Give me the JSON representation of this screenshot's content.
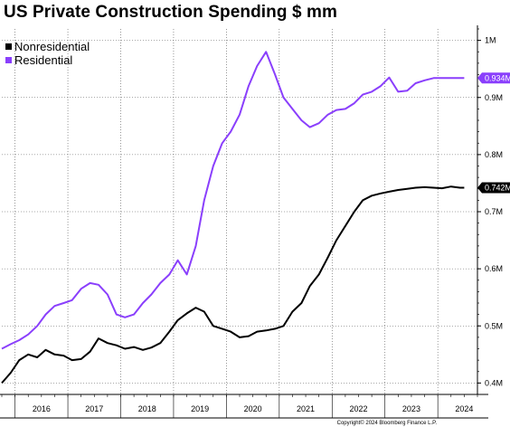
{
  "chart_data": {
    "type": "line",
    "title": "US Private Construction Spending $ mm",
    "legend_position": "top-left",
    "grid": true,
    "y_axis_position": "right",
    "ylim": [
      380000,
      1020000
    ],
    "y_ticks": [
      400000,
      500000,
      600000,
      700000,
      800000,
      900000,
      1000000
    ],
    "y_tick_labels": [
      "0.4M",
      "0.5M",
      "0.6M",
      "0.7M",
      "0.8M",
      "0.9M",
      "1M"
    ],
    "xlim": [
      2015.75,
      2024.75
    ],
    "x_tick_labels": [
      "2016",
      "2017",
      "2018",
      "2019",
      "2020",
      "2021",
      "2022",
      "2023",
      "2024"
    ],
    "series": [
      {
        "name": "Nonresidential",
        "color": "#000000",
        "last_value_label": "0.742M",
        "x": [
          2015.75,
          2015.92,
          2016.08,
          2016.25,
          2016.42,
          2016.58,
          2016.75,
          2016.92,
          2017.08,
          2017.25,
          2017.42,
          2017.58,
          2017.75,
          2017.92,
          2018.08,
          2018.25,
          2018.42,
          2018.58,
          2018.75,
          2018.92,
          2019.08,
          2019.25,
          2019.42,
          2019.58,
          2019.75,
          2019.92,
          2020.08,
          2020.25,
          2020.42,
          2020.58,
          2020.75,
          2020.92,
          2021.08,
          2021.25,
          2021.42,
          2021.58,
          2021.75,
          2021.92,
          2022.08,
          2022.25,
          2022.42,
          2022.58,
          2022.75,
          2022.92,
          2023.08,
          2023.25,
          2023.42,
          2023.58,
          2023.75,
          2023.92,
          2024.08,
          2024.25,
          2024.42,
          2024.5
        ],
        "values": [
          400000,
          418000,
          440000,
          450000,
          445000,
          458000,
          450000,
          448000,
          440000,
          442000,
          455000,
          478000,
          470000,
          466000,
          460000,
          463000,
          458000,
          462000,
          470000,
          490000,
          510000,
          522000,
          532000,
          525000,
          500000,
          495000,
          490000,
          480000,
          482000,
          490000,
          492000,
          495000,
          500000,
          525000,
          540000,
          570000,
          590000,
          620000,
          650000,
          675000,
          700000,
          720000,
          728000,
          732000,
          735000,
          738000,
          740000,
          742000,
          743000,
          742000,
          741000,
          744000,
          742000,
          742000
        ]
      },
      {
        "name": "Residential",
        "color": "#8a3ffc",
        "last_value_label": "0.934M",
        "x": [
          2015.75,
          2015.92,
          2016.08,
          2016.25,
          2016.42,
          2016.58,
          2016.75,
          2016.92,
          2017.08,
          2017.25,
          2017.42,
          2017.58,
          2017.75,
          2017.92,
          2018.08,
          2018.25,
          2018.42,
          2018.58,
          2018.75,
          2018.92,
          2019.08,
          2019.25,
          2019.42,
          2019.58,
          2019.75,
          2019.92,
          2020.08,
          2020.25,
          2020.42,
          2020.58,
          2020.75,
          2020.92,
          2021.08,
          2021.25,
          2021.42,
          2021.58,
          2021.75,
          2021.92,
          2022.08,
          2022.25,
          2022.42,
          2022.58,
          2022.75,
          2022.92,
          2023.08,
          2023.25,
          2023.42,
          2023.58,
          2023.75,
          2023.92,
          2024.08,
          2024.17,
          2024.25,
          2024.33,
          2024.42,
          2024.5
        ],
        "values": [
          460000,
          468000,
          475000,
          485000,
          500000,
          520000,
          535000,
          540000,
          545000,
          565000,
          575000,
          572000,
          555000,
          520000,
          515000,
          520000,
          540000,
          555000,
          575000,
          590000,
          615000,
          590000,
          640000,
          720000,
          780000,
          820000,
          840000,
          870000,
          920000,
          955000,
          980000,
          940000,
          900000,
          880000,
          860000,
          848000,
          855000,
          870000,
          878000,
          880000,
          890000,
          905000,
          910000,
          920000,
          935000,
          910000,
          912000,
          925000,
          930000,
          934000,
          934000,
          934000,
          934000,
          934000,
          934000,
          934000
        ]
      }
    ],
    "annotation": "Copyright© 2024 Bloomberg Finance L.P."
  }
}
